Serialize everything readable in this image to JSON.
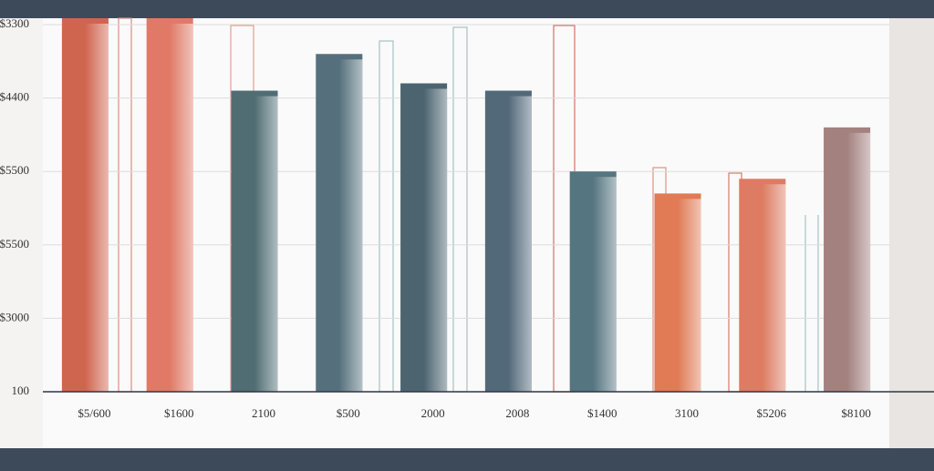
{
  "chart_data": {
    "type": "bar",
    "categories": [
      "$5/600",
      "$1600",
      "2100",
      "$500",
      "2000",
      "2008",
      "$1400",
      "3100",
      "$5206",
      "$8100"
    ],
    "values": [
      5.1,
      5.1,
      4.1,
      4.6,
      4.2,
      4.1,
      3.0,
      2.7,
      2.9,
      3.6
    ],
    "colors": [
      "#d0654f",
      "#e07a66",
      "#4f6d73",
      "#55707c",
      "#4c6470",
      "#52697a",
      "#557580",
      "#e07b55",
      "#dd7c62",
      "#a3817f"
    ],
    "ylim": [
      0,
      5
    ],
    "yticks": [
      {
        "value": 0,
        "label": "100"
      },
      {
        "value": 1,
        "label": "$3000"
      },
      {
        "value": 2,
        "label": "$5500"
      },
      {
        "value": 3,
        "label": "$5500"
      },
      {
        "value": 4,
        "label": "$4400"
      },
      {
        "value": 5,
        "label": "$3300"
      }
    ],
    "grid": true
  }
}
